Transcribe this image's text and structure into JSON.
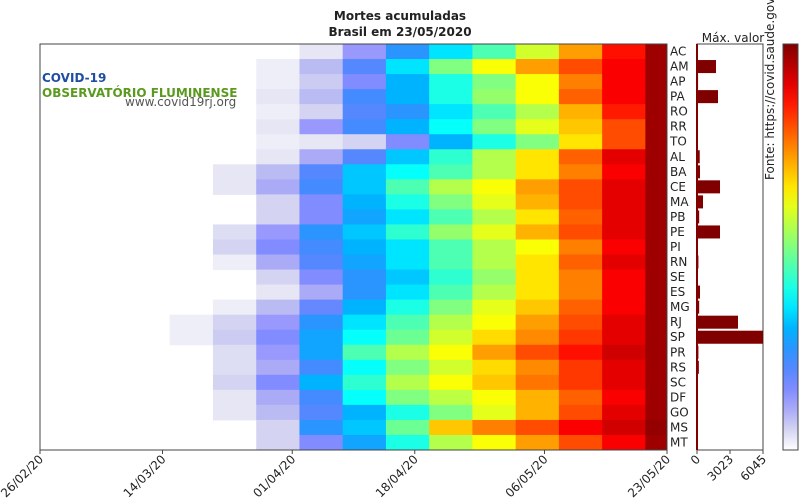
{
  "chart_data": {
    "type": "heatmap",
    "title": "Mortes acumuladas",
    "subtitle": "Brasil em 23/05/2020",
    "colormap": "jet",
    "source": "Fonte: https://covid.saude.gov.br/",
    "categories": [
      "AC",
      "AM",
      "AP",
      "PA",
      "RO",
      "RR",
      "TO",
      "AL",
      "BA",
      "CE",
      "MA",
      "PB",
      "PE",
      "PI",
      "RN",
      "SE",
      "ES",
      "MG",
      "RJ",
      "SP",
      "PR",
      "RS",
      "SC",
      "DF",
      "GO",
      "MS",
      "MT"
    ],
    "x": [
      0,
      6,
      12,
      18,
      24,
      30,
      36,
      42,
      48,
      54,
      60,
      66,
      72,
      78,
      84
    ],
    "xlim": [
      0,
      87
    ],
    "xticks": [
      {
        "value": 0,
        "label": "26/02/20"
      },
      {
        "value": 17,
        "label": "14/03/20"
      },
      {
        "value": 35,
        "label": "01/04/20"
      },
      {
        "value": 52,
        "label": "18/04/20"
      },
      {
        "value": 70,
        "label": "06/05/20"
      },
      {
        "value": 87,
        "label": "23/05/20"
      }
    ],
    "z": [
      [
        null,
        null,
        null,
        null,
        null,
        null,
        0.03,
        0.12,
        0.25,
        0.35,
        0.45,
        0.58,
        0.72,
        0.86,
        0.97
      ],
      [
        null,
        null,
        null,
        null,
        null,
        0.02,
        0.08,
        0.2,
        0.35,
        0.5,
        0.62,
        0.72,
        0.8,
        0.88,
        0.97
      ],
      [
        null,
        null,
        null,
        null,
        null,
        0.02,
        0.06,
        0.15,
        0.3,
        0.4,
        0.5,
        0.62,
        0.75,
        0.88,
        0.97
      ],
      [
        null,
        null,
        null,
        null,
        null,
        0.03,
        0.08,
        0.22,
        0.3,
        0.4,
        0.52,
        0.62,
        0.78,
        0.88,
        0.97
      ],
      [
        null,
        null,
        null,
        null,
        null,
        0.02,
        0.05,
        0.2,
        0.25,
        0.35,
        0.45,
        0.55,
        0.7,
        0.85,
        0.97
      ],
      [
        null,
        null,
        null,
        null,
        null,
        0.03,
        0.12,
        0.22,
        0.3,
        0.38,
        0.5,
        0.6,
        0.68,
        0.8,
        0.97
      ],
      [
        null,
        null,
        null,
        null,
        null,
        0.02,
        0.03,
        0.05,
        0.15,
        0.3,
        0.4,
        0.5,
        0.65,
        0.8,
        0.97
      ],
      [
        null,
        null,
        null,
        null,
        null,
        0.03,
        0.1,
        0.2,
        0.32,
        0.42,
        0.55,
        0.65,
        0.78,
        0.9,
        0.97
      ],
      [
        null,
        null,
        null,
        null,
        0.03,
        0.08,
        0.2,
        0.32,
        0.38,
        0.45,
        0.55,
        0.65,
        0.75,
        0.88,
        0.97
      ],
      [
        null,
        null,
        null,
        null,
        0.03,
        0.1,
        0.22,
        0.32,
        0.45,
        0.55,
        0.62,
        0.72,
        0.8,
        0.9,
        0.97
      ],
      [
        null,
        null,
        null,
        null,
        null,
        0.05,
        0.15,
        0.3,
        0.4,
        0.5,
        0.6,
        0.7,
        0.8,
        0.9,
        0.97
      ],
      [
        null,
        null,
        null,
        null,
        null,
        0.05,
        0.15,
        0.28,
        0.35,
        0.45,
        0.55,
        0.65,
        0.78,
        0.9,
        0.97
      ],
      [
        null,
        null,
        null,
        null,
        0.04,
        0.12,
        0.25,
        0.32,
        0.42,
        0.52,
        0.6,
        0.7,
        0.8,
        0.9,
        0.97
      ],
      [
        null,
        null,
        null,
        null,
        0.05,
        0.15,
        0.22,
        0.3,
        0.35,
        0.45,
        0.55,
        0.62,
        0.75,
        0.88,
        0.97
      ],
      [
        null,
        null,
        null,
        null,
        0.02,
        0.1,
        0.2,
        0.28,
        0.35,
        0.45,
        0.55,
        0.65,
        0.78,
        0.9,
        0.97
      ],
      [
        null,
        null,
        null,
        null,
        null,
        0.05,
        0.15,
        0.25,
        0.32,
        0.42,
        0.52,
        0.65,
        0.75,
        0.88,
        0.97
      ],
      [
        null,
        null,
        null,
        null,
        null,
        0.03,
        0.1,
        0.25,
        0.35,
        0.45,
        0.55,
        0.65,
        0.75,
        0.88,
        0.97
      ],
      [
        null,
        null,
        null,
        null,
        0.02,
        0.08,
        0.18,
        0.3,
        0.4,
        0.5,
        0.6,
        0.68,
        0.78,
        0.88,
        0.97
      ],
      [
        null,
        null,
        null,
        0.02,
        0.05,
        0.12,
        0.25,
        0.35,
        0.45,
        0.55,
        0.62,
        0.72,
        0.8,
        0.9,
        0.97
      ],
      [
        null,
        null,
        null,
        0.02,
        0.06,
        0.15,
        0.28,
        0.38,
        0.48,
        0.58,
        0.66,
        0.74,
        0.82,
        0.9,
        0.97
      ],
      [
        null,
        null,
        null,
        null,
        0.04,
        0.12,
        0.28,
        0.45,
        0.55,
        0.62,
        0.72,
        0.8,
        0.86,
        0.92,
        0.97
      ],
      [
        null,
        null,
        null,
        null,
        0.04,
        0.1,
        0.22,
        0.38,
        0.5,
        0.58,
        0.66,
        0.74,
        0.82,
        0.9,
        0.97
      ],
      [
        null,
        null,
        null,
        null,
        0.05,
        0.15,
        0.3,
        0.42,
        0.55,
        0.62,
        0.68,
        0.76,
        0.82,
        0.9,
        0.97
      ],
      [
        null,
        null,
        null,
        null,
        0.03,
        0.1,
        0.22,
        0.38,
        0.5,
        0.56,
        0.62,
        0.7,
        0.78,
        0.88,
        0.97
      ],
      [
        null,
        null,
        null,
        null,
        0.03,
        0.08,
        0.2,
        0.3,
        0.4,
        0.5,
        0.6,
        0.7,
        0.8,
        0.9,
        0.97
      ],
      [
        null,
        null,
        null,
        null,
        null,
        0.05,
        0.25,
        0.32,
        0.48,
        0.68,
        0.75,
        0.8,
        0.88,
        0.92,
        0.98
      ],
      [
        null,
        null,
        null,
        null,
        null,
        0.05,
        0.15,
        0.28,
        0.4,
        0.55,
        0.62,
        0.72,
        0.8,
        0.88,
        0.97
      ]
    ],
    "bars": {
      "title": "Máx. valor",
      "color": "#800000",
      "xlim": [
        0,
        6045
      ],
      "xticks": [
        0,
        3023,
        6045
      ],
      "values": [
        40,
        1740,
        100,
        1923,
        70,
        50,
        20,
        250,
        275,
        2107,
        550,
        200,
        2107,
        80,
        130,
        80,
        275,
        200,
        3755,
        6045,
        130,
        170,
        80,
        80,
        70,
        15,
        30
      ]
    }
  },
  "logo": {
    "title": "COVID-19",
    "subtitle": "OBSERVATÓRIO FLUMINENSE",
    "url": "www.covid19rj.org"
  }
}
